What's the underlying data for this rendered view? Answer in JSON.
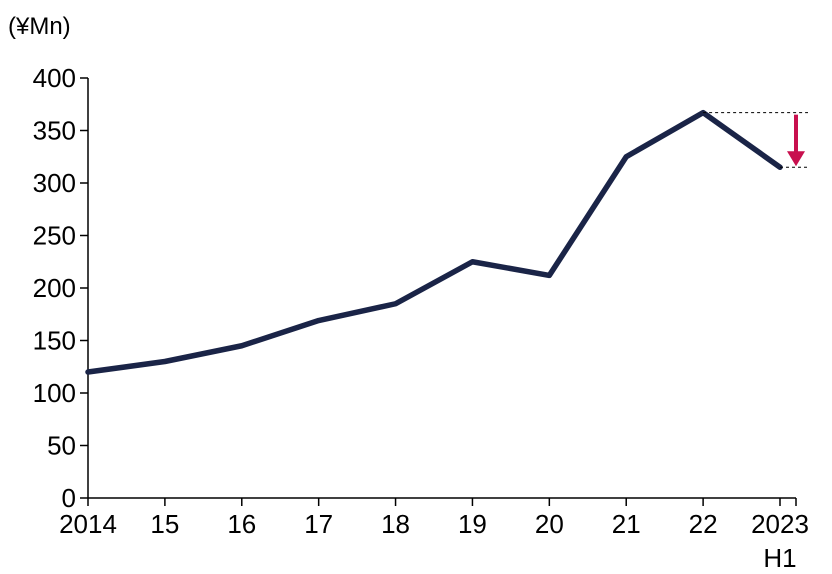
{
  "chart_data": {
    "type": "line",
    "title": "",
    "ylabel": "(¥Mn)",
    "xlabel": "",
    "categories": [
      "2014",
      "15",
      "16",
      "17",
      "18",
      "19",
      "20",
      "21",
      "22",
      "2023"
    ],
    "category_sublabels": [
      "",
      "",
      "",
      "",
      "",
      "",
      "",
      "",
      "",
      "H1"
    ],
    "values": [
      120,
      130,
      145,
      169,
      185,
      225,
      212,
      325,
      367,
      315
    ],
    "ylim": [
      0,
      400
    ],
    "yticks": [
      0,
      50,
      100,
      150,
      200,
      250,
      300,
      350,
      400
    ],
    "grid": false,
    "legend": "none",
    "colors": {
      "line": "#1a2447",
      "arrow": "#c8104e",
      "axis": "#000000",
      "guide": "#000000"
    },
    "annotation": {
      "type": "decline-arrow",
      "from": 367,
      "to": 315
    }
  }
}
